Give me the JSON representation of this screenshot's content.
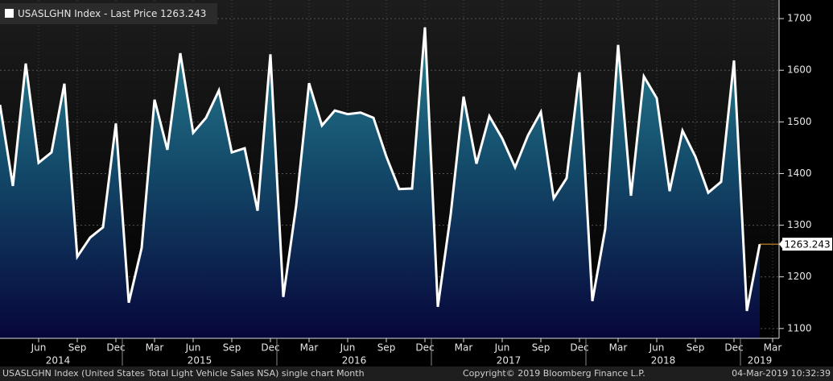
{
  "chart_data": {
    "type": "area",
    "series": [
      {
        "name": "USASLGHN Index - Last Price",
        "color": "#ffffff",
        "values": [
          1533,
          1376,
          1613,
          1421,
          1441,
          1574,
          1239,
          1276,
          1296,
          1497,
          1150,
          1256,
          1543,
          1446,
          1633,
          1479,
          1508,
          1561,
          1441,
          1449,
          1328,
          1631,
          1161,
          1338,
          1575,
          1493,
          1522,
          1515,
          1518,
          1508,
          1433,
          1370,
          1371,
          1683,
          1142,
          1321,
          1549,
          1419,
          1511,
          1468,
          1412,
          1474,
          1519,
          1352,
          1391,
          1596,
          1153,
          1293,
          1649,
          1357,
          1588,
          1546,
          1366,
          1483,
          1433,
          1363,
          1384,
          1619,
          1134,
          1263.243
        ]
      }
    ],
    "x": [
      "2014-03",
      "2014-04",
      "2014-05",
      "2014-06",
      "2014-07",
      "2014-08",
      "2014-09",
      "2014-10",
      "2014-11",
      "2014-12",
      "2015-01",
      "2015-02",
      "2015-03",
      "2015-04",
      "2015-05",
      "2015-06",
      "2015-07",
      "2015-08",
      "2015-09",
      "2015-10",
      "2015-11",
      "2015-12",
      "2016-01",
      "2016-02",
      "2016-03",
      "2016-04",
      "2016-05",
      "2016-06",
      "2016-07",
      "2016-08",
      "2016-09",
      "2016-10",
      "2016-11",
      "2016-12",
      "2017-01",
      "2017-02",
      "2017-03",
      "2017-04",
      "2017-05",
      "2017-06",
      "2017-07",
      "2017-08",
      "2017-09",
      "2017-10",
      "2017-11",
      "2017-12",
      "2018-01",
      "2018-02",
      "2018-03",
      "2018-04",
      "2018-05",
      "2018-06",
      "2018-07",
      "2018-08",
      "2018-09",
      "2018-10",
      "2018-11",
      "2018-12",
      "2019-01",
      "2019-02"
    ],
    "xticks": [
      {
        "value": "2014-06",
        "label": "Jun"
      },
      {
        "value": "2014-09",
        "label": "Sep"
      },
      {
        "value": "2014-12",
        "label": "Dec"
      },
      {
        "value": "2015-03",
        "label": "Mar"
      },
      {
        "value": "2015-06",
        "label": "Jun"
      },
      {
        "value": "2015-09",
        "label": "Sep"
      },
      {
        "value": "2015-12",
        "label": "Dec"
      },
      {
        "value": "2016-03",
        "label": "Mar"
      },
      {
        "value": "2016-06",
        "label": "Jun"
      },
      {
        "value": "2016-09",
        "label": "Sep"
      },
      {
        "value": "2016-12",
        "label": "Dec"
      },
      {
        "value": "2017-03",
        "label": "Mar"
      },
      {
        "value": "2017-06",
        "label": "Jun"
      },
      {
        "value": "2017-09",
        "label": "Sep"
      },
      {
        "value": "2017-12",
        "label": "Dec"
      },
      {
        "value": "2018-03",
        "label": "Mar"
      },
      {
        "value": "2018-06",
        "label": "Jun"
      },
      {
        "value": "2018-09",
        "label": "Sep"
      },
      {
        "value": "2018-12",
        "label": "Dec"
      },
      {
        "value": "2019-03",
        "label": "Mar"
      }
    ],
    "years": [
      "2014",
      "2015",
      "2016",
      "2017",
      "2018",
      "2019"
    ],
    "ylim": [
      1081,
      1736
    ],
    "yticks": [
      1100,
      1200,
      1300,
      1400,
      1500,
      1600,
      1700
    ],
    "grid": true,
    "last_value_label": "1263.243",
    "footer": {
      "description": "USASLGHN Index (United States Total Light Vehicle Sales NSA) single chart  Month",
      "copyright": "Copyright© 2019 Bloomberg Finance L.P.",
      "timestamp": "04-Mar-2019 10:32:39"
    }
  }
}
